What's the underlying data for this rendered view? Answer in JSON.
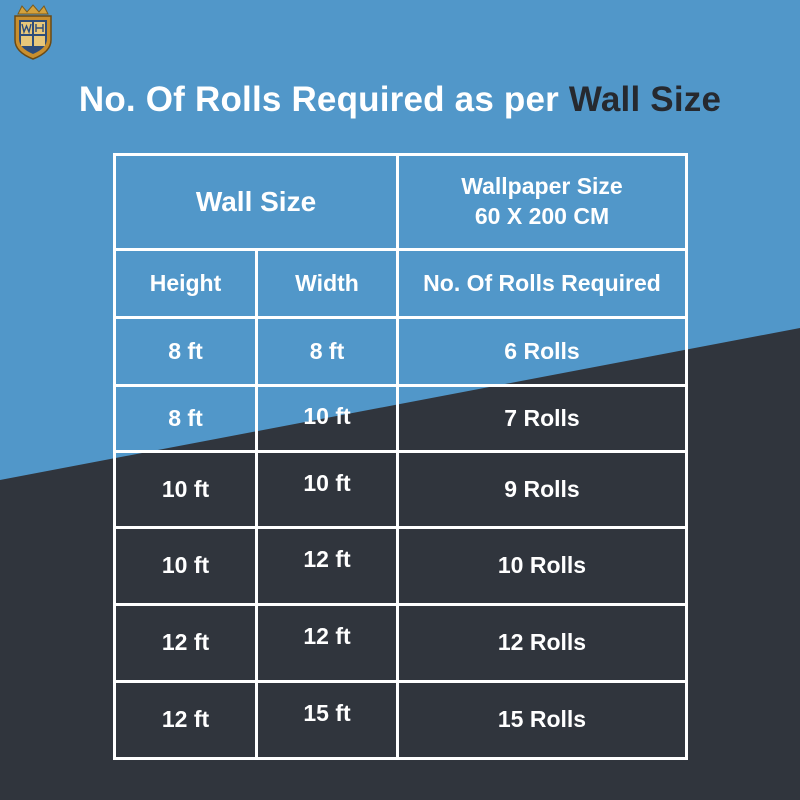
{
  "colors": {
    "blue": "#5197c9",
    "dark": "#30353d",
    "white": "#ffffff",
    "title_emphasis": "#26292f"
  },
  "logo": {
    "icon": "crest-logo-icon"
  },
  "title": {
    "main": "No. Of Rolls Required as per ",
    "emphasis": "Wall Size"
  },
  "table": {
    "group_header": "Wall Size",
    "wallpaper_header_line1": "Wallpaper Size",
    "wallpaper_header_line2": "60 X 200 CM",
    "columns": [
      "Height",
      "Width",
      "No. Of Rolls Required"
    ],
    "rows": [
      {
        "height": "8 ft",
        "width": "8 ft",
        "rolls": "6 Rolls"
      },
      {
        "height": "8 ft",
        "width": "10 ft",
        "rolls": "7 Rolls"
      },
      {
        "height": "10 ft",
        "width": "10 ft",
        "rolls": "9 Rolls"
      },
      {
        "height": "10 ft",
        "width": "12 ft",
        "rolls": "10 Rolls"
      },
      {
        "height": "12 ft",
        "width": "12 ft",
        "rolls": "12 Rolls"
      },
      {
        "height": "12 ft",
        "width": "15 ft",
        "rolls": "15 Rolls"
      }
    ]
  }
}
